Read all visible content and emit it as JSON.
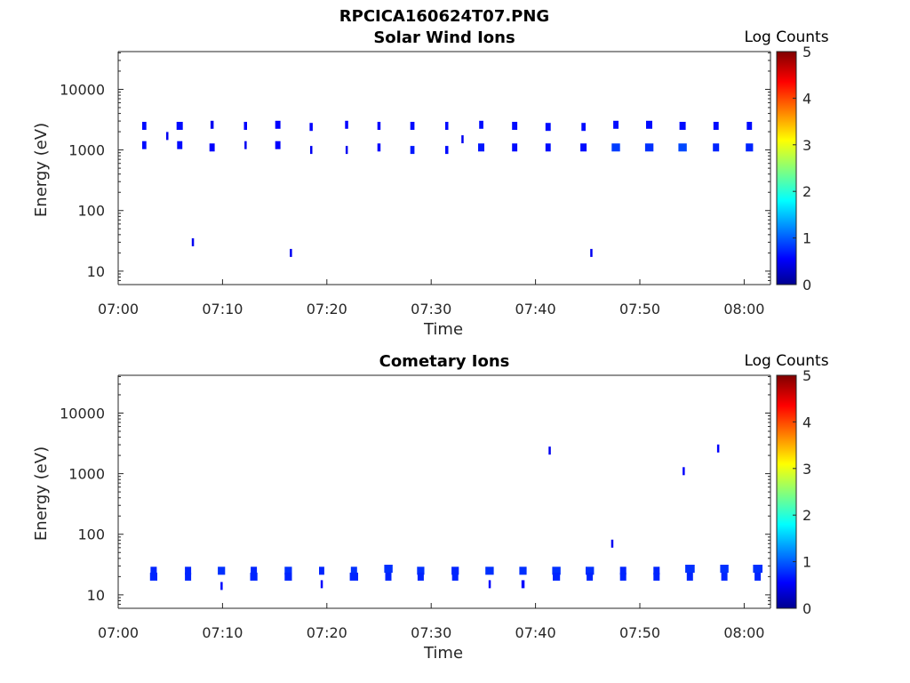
{
  "figure_title": "RPCICA160624T07.PNG",
  "chart_data": [
    {
      "type": "heatmap",
      "title": "Solar Wind Ions",
      "xlabel": "Time",
      "ylabel": "Energy (eV)",
      "x_ticks": [
        "07:00",
        "07:10",
        "07:20",
        "07:30",
        "07:40",
        "07:50",
        "08:00"
      ],
      "x_range_minutes": [
        0,
        62.5
      ],
      "y_scale": "log",
      "y_ticks": [
        10,
        100,
        1000,
        10000
      ],
      "y_tick_labels": [
        "10",
        "100",
        "1000",
        "10000"
      ],
      "y_range_ev": [
        6,
        42000
      ],
      "colorbar": {
        "label": "Log Counts",
        "min": 0,
        "max": 5,
        "ticks": [
          "0",
          "1",
          "2",
          "3",
          "4",
          "5"
        ],
        "colormap": "jet"
      },
      "grid": false,
      "cells": [
        [
          2.5,
          2500,
          0.4,
          0.3
        ],
        [
          2.5,
          1200,
          0.4,
          0.3
        ],
        [
          4.7,
          1700,
          0.2,
          0.1
        ],
        [
          5.9,
          2500,
          0.6,
          0.3
        ],
        [
          5.9,
          1200,
          0.5,
          0.3
        ],
        [
          7.1,
          30,
          0.1,
          0.1
        ],
        [
          9.0,
          2600,
          0.3,
          0.1
        ],
        [
          9.0,
          1100,
          0.5,
          0.2
        ],
        [
          12.2,
          2500,
          0.3,
          0.2
        ],
        [
          12.2,
          1200,
          0.2,
          0.1
        ],
        [
          15.3,
          2600,
          0.5,
          0.2
        ],
        [
          15.3,
          1200,
          0.5,
          0.2
        ],
        [
          16.5,
          20,
          0.1,
          0.1
        ],
        [
          18.5,
          2400,
          0.3,
          0.2
        ],
        [
          18.5,
          1000,
          0.2,
          0.1
        ],
        [
          21.9,
          2600,
          0.3,
          0.2
        ],
        [
          21.9,
          1000,
          0.2,
          0.1
        ],
        [
          25.0,
          2500,
          0.3,
          0.2
        ],
        [
          25.0,
          1100,
          0.3,
          0.2
        ],
        [
          28.2,
          2500,
          0.4,
          0.3
        ],
        [
          28.2,
          1000,
          0.4,
          0.4
        ],
        [
          31.5,
          2500,
          0.3,
          0.3
        ],
        [
          31.5,
          1000,
          0.3,
          0.3
        ],
        [
          33.0,
          1500,
          0.2,
          0.1
        ],
        [
          34.8,
          2600,
          0.4,
          0.3
        ],
        [
          34.8,
          1100,
          0.6,
          0.4
        ],
        [
          38.0,
          2500,
          0.5,
          0.3
        ],
        [
          38.0,
          1100,
          0.5,
          0.3
        ],
        [
          41.2,
          2400,
          0.5,
          0.3
        ],
        [
          41.2,
          1100,
          0.5,
          0.3
        ],
        [
          44.6,
          2400,
          0.4,
          0.3
        ],
        [
          44.6,
          1100,
          0.6,
          0.3
        ],
        [
          45.3,
          20,
          0.1,
          0.1
        ],
        [
          47.7,
          2600,
          0.5,
          0.3
        ],
        [
          47.7,
          1100,
          0.8,
          0.7
        ],
        [
          50.9,
          2600,
          0.6,
          0.3
        ],
        [
          50.9,
          1100,
          0.8,
          0.6
        ],
        [
          54.1,
          2500,
          0.6,
          0.3
        ],
        [
          54.1,
          1100,
          0.8,
          0.8
        ],
        [
          57.3,
          2500,
          0.5,
          0.3
        ],
        [
          57.3,
          1100,
          0.6,
          0.5
        ],
        [
          60.5,
          2500,
          0.5,
          0.3
        ],
        [
          60.5,
          1100,
          0.7,
          0.5
        ]
      ]
    },
    {
      "type": "heatmap",
      "title": "Cometary Ions",
      "xlabel": "Time",
      "ylabel": "Energy (eV)",
      "x_ticks": [
        "07:00",
        "07:10",
        "07:20",
        "07:30",
        "07:40",
        "07:50",
        "08:00"
      ],
      "x_range_minutes": [
        0,
        62.5
      ],
      "y_scale": "log",
      "y_ticks": [
        10,
        100,
        1000,
        10000
      ],
      "y_tick_labels": [
        "10",
        "100",
        "1000",
        "10000"
      ],
      "y_range_ev": [
        6,
        42000
      ],
      "colorbar": {
        "label": "Log Counts",
        "min": 0,
        "max": 5,
        "ticks": [
          "0",
          "1",
          "2",
          "3",
          "4",
          "5"
        ],
        "colormap": "jet"
      },
      "grid": false,
      "cells": [
        [
          3.4,
          25,
          0.6,
          0.5
        ],
        [
          3.4,
          20,
          0.7,
          0.5
        ],
        [
          6.7,
          25,
          0.6,
          0.5
        ],
        [
          6.7,
          20,
          0.6,
          0.5
        ],
        [
          9.9,
          25,
          0.7,
          0.6
        ],
        [
          9.9,
          14,
          0.2,
          0.3
        ],
        [
          13.0,
          25,
          0.6,
          0.5
        ],
        [
          13.0,
          20,
          0.7,
          0.5
        ],
        [
          16.3,
          25,
          0.7,
          0.6
        ],
        [
          16.3,
          20,
          0.7,
          0.5
        ],
        [
          19.5,
          25,
          0.5,
          0.5
        ],
        [
          19.5,
          15,
          0.2,
          0.2
        ],
        [
          22.6,
          25,
          0.6,
          0.6
        ],
        [
          22.6,
          20,
          0.8,
          0.5
        ],
        [
          25.9,
          27,
          0.8,
          0.6
        ],
        [
          25.9,
          20,
          0.6,
          0.5
        ],
        [
          29.0,
          25,
          0.7,
          0.6
        ],
        [
          29.0,
          20,
          0.6,
          0.5
        ],
        [
          32.3,
          25,
          0.7,
          0.5
        ],
        [
          32.3,
          20,
          0.6,
          0.5
        ],
        [
          35.6,
          25,
          0.8,
          0.6
        ],
        [
          35.6,
          15,
          0.2,
          0.2
        ],
        [
          38.8,
          25,
          0.7,
          0.6
        ],
        [
          38.8,
          15,
          0.3,
          0.3
        ],
        [
          41.3,
          2400,
          0.1,
          0.1
        ],
        [
          42.0,
          25,
          0.8,
          0.6
        ],
        [
          42.0,
          20,
          0.7,
          0.5
        ],
        [
          45.2,
          25,
          0.8,
          0.6
        ],
        [
          45.2,
          20,
          0.6,
          0.5
        ],
        [
          47.3,
          70,
          0.1,
          0.1
        ],
        [
          48.4,
          25,
          0.6,
          0.5
        ],
        [
          48.4,
          20,
          0.6,
          0.5
        ],
        [
          51.6,
          25,
          0.6,
          0.5
        ],
        [
          51.6,
          20,
          0.6,
          0.5
        ],
        [
          54.2,
          1100,
          0.2,
          0.2
        ],
        [
          54.8,
          27,
          0.9,
          0.6
        ],
        [
          54.8,
          20,
          0.6,
          0.5
        ],
        [
          57.5,
          2600,
          0.2,
          0.2
        ],
        [
          58.1,
          27,
          0.8,
          0.6
        ],
        [
          58.1,
          20,
          0.6,
          0.5
        ],
        [
          61.3,
          27,
          0.9,
          0.6
        ],
        [
          61.3,
          20,
          0.6,
          0.5
        ]
      ]
    }
  ]
}
